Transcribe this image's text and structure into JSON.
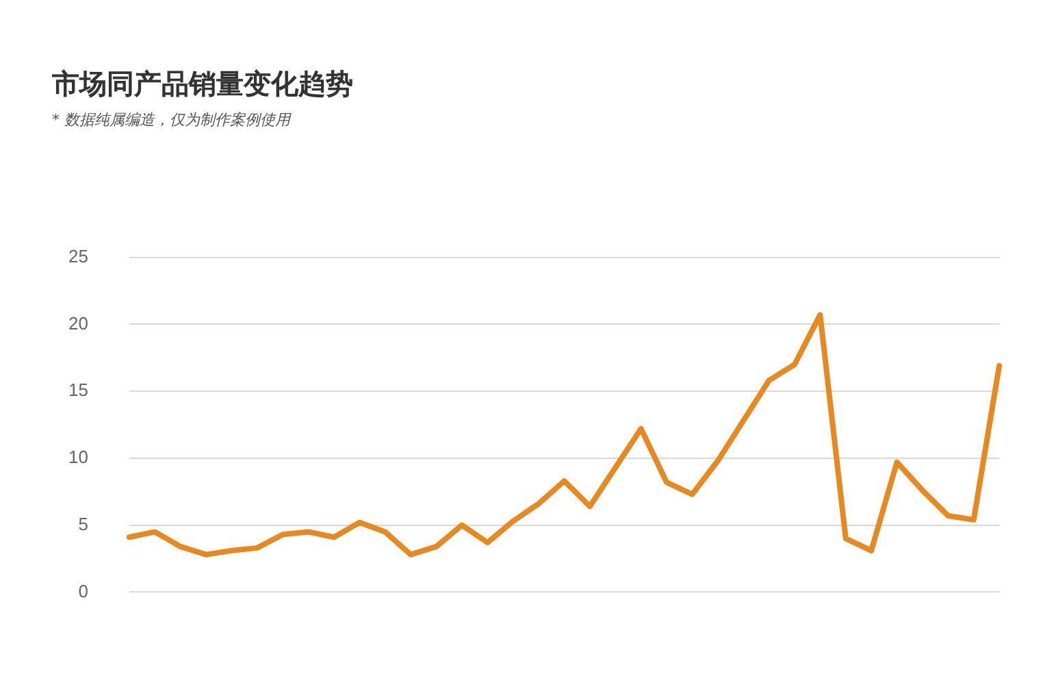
{
  "chart_data": {
    "type": "line",
    "title": "市场同产品销量变化趋势",
    "subtitle": "* 数据纯属编造，仅为制作案例使用",
    "categories": [
      null,
      null,
      null,
      null,
      null,
      null,
      null,
      null,
      null,
      null,
      null,
      null,
      null,
      null,
      null,
      null,
      null,
      null,
      null,
      null,
      null,
      null,
      null,
      null,
      null,
      null,
      null,
      null,
      null,
      null,
      null,
      null,
      null,
      null,
      null
    ],
    "series": [
      {
        "color": "#e8891f",
        "values": [
          4.1,
          4.5,
          3.4,
          2.8,
          3.1,
          3.3,
          4.3,
          4.5,
          4.1,
          5.2,
          4.5,
          2.8,
          3.4,
          5.0,
          3.7,
          5.3,
          6.6,
          8.3,
          6.4,
          9.3,
          12.2,
          8.2,
          7.3,
          9.8,
          12.8,
          15.8,
          17.0,
          20.7,
          4.0,
          3.1,
          9.7,
          7.6,
          5.7,
          5.4,
          16.9
        ]
      }
    ],
    "ylim": [
      0,
      25
    ],
    "yticks": [
      0,
      5,
      10,
      15,
      20,
      25
    ],
    "grid": "y",
    "legend": false,
    "marker": "none",
    "line_style": "solid",
    "tick_labels": "y"
  }
}
